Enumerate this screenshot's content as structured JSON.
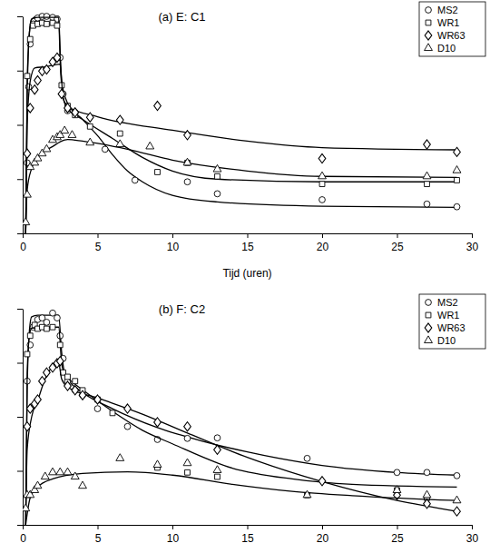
{
  "chart_data": [
    {
      "type": "scatter",
      "title": "(a) E: C1",
      "x_label": "Tijd (uren)",
      "xlim": [
        0,
        30
      ],
      "xticks": [
        0,
        5,
        10,
        15,
        20,
        25,
        30
      ],
      "ylim": [
        -4,
        0
      ],
      "yticks": [
        -4,
        -3,
        -2,
        -1,
        0
      ],
      "tick_labels": "x",
      "grid": false,
      "legend": "top-right",
      "series": [
        {
          "name": "MS2",
          "color": "#000000",
          "marker": "circle",
          "x": [
            0.3,
            0.4,
            0.5,
            0.7,
            1,
            1.3,
            1.6,
            2,
            2.3,
            2.5,
            2.7,
            3,
            3.5,
            5.5,
            7.5,
            11,
            13,
            20,
            27,
            29
          ],
          "values": [
            -2.7,
            -1.3,
            -0.51,
            -0.14,
            -0.03,
            0,
            0,
            -0.02,
            -0.05,
            -0.76,
            -1.43,
            -1.74,
            -1.77,
            -2.45,
            -3.02,
            -3.05,
            -3.27,
            -3.38,
            -3.46,
            -3.51
          ],
          "fit_x": [
            0.2,
            0.3,
            0.45,
            0.6,
            1,
            2.4,
            2.5,
            2.6,
            3,
            4,
            5,
            6,
            7,
            8,
            10,
            13,
            20,
            29
          ],
          "fit_values": [
            -4,
            -1.5,
            -0.3,
            -0.05,
            0,
            0,
            -0.6,
            -1.2,
            -1.6,
            -1.9,
            -2.2,
            -2.55,
            -2.85,
            -3.05,
            -3.3,
            -3.42,
            -3.5,
            -3.52
          ]
        },
        {
          "name": "WR1",
          "color": "#000000",
          "marker": "square",
          "x": [
            0.3,
            0.5,
            0.7,
            1,
            1.3,
            1.6,
            2,
            2.3,
            2.6,
            3,
            3.5,
            4.5,
            6.5,
            9,
            11,
            13,
            20,
            27,
            29
          ],
          "values": [
            -1.1,
            -0.42,
            -0.17,
            -0.14,
            -0.12,
            -0.14,
            -0.12,
            -0.17,
            -1.27,
            -1.65,
            -1.82,
            -2.03,
            -2.16,
            -2.87,
            -2.7,
            -2.95,
            -3.09,
            -3.09,
            -3.02
          ],
          "fit_x": [
            0.2,
            0.3,
            0.45,
            0.6,
            1,
            2.4,
            2.5,
            2.7,
            3,
            4,
            6,
            8,
            10,
            13,
            20,
            29
          ],
          "fit_values": [
            -4,
            -1.2,
            -0.3,
            -0.05,
            -0.02,
            -0.02,
            -0.8,
            -1.5,
            -1.7,
            -1.9,
            -2.25,
            -2.6,
            -2.85,
            -3.0,
            -3.05,
            -3.05
          ]
        },
        {
          "name": "WR63",
          "color": "#000000",
          "marker": "diamond",
          "x": [
            0.3,
            0.5,
            0.8,
            1,
            1.3,
            1.6,
            2,
            2.3,
            2.6,
            3,
            3.5,
            4.5,
            6.5,
            9,
            11,
            20,
            27,
            29
          ],
          "values": [
            -2.53,
            -1.69,
            -1.35,
            -1.18,
            -1.01,
            -0.98,
            -0.84,
            -0.76,
            -1.43,
            -1.69,
            -1.77,
            -1.86,
            -1.91,
            -1.65,
            -2.19,
            -2.62,
            -2.36,
            -2.5
          ],
          "fit_x": [
            0.2,
            0.3,
            0.5,
            0.8,
            1.5,
            2.5,
            2.7,
            3,
            5,
            10,
            15,
            20,
            29
          ],
          "fit_values": [
            -4,
            -2.0,
            -1.2,
            -0.95,
            -0.93,
            -0.88,
            -1.5,
            -1.66,
            -1.85,
            -2.1,
            -2.3,
            -2.42,
            -2.46
          ]
        },
        {
          "name": "D10",
          "color": "#000000",
          "marker": "triangle",
          "x": [
            0.2,
            0.3,
            0.5,
            0.8,
            1,
            1.3,
            1.6,
            2,
            2.3,
            2.5,
            2.8,
            3.3,
            4.5,
            6.5,
            8.5,
            11,
            13,
            20,
            27,
            29
          ],
          "values": [
            -3.8,
            -3.29,
            -2.78,
            -2.7,
            -2.62,
            -2.53,
            -2.45,
            -2.28,
            -2.23,
            -2.19,
            -2.11,
            -2.19,
            -2.33,
            -2.36,
            -2.4,
            -2.7,
            -2.82,
            -2.95,
            -2.95,
            -2.84
          ],
          "fit_x": [
            0.2,
            0.3,
            0.6,
            1,
            2,
            2.8,
            3,
            4,
            7,
            10,
            15,
            20,
            29
          ],
          "fit_values": [
            -4,
            -3.2,
            -2.8,
            -2.6,
            -2.4,
            -2.28,
            -2.27,
            -2.3,
            -2.45,
            -2.65,
            -2.85,
            -2.95,
            -2.97
          ]
        }
      ]
    },
    {
      "type": "scatter",
      "title": "(b) F: C2",
      "xlim": [
        0,
        30
      ],
      "xticks": [
        0,
        5,
        10,
        15,
        20,
        25,
        30
      ],
      "ylim": [
        -4,
        0
      ],
      "yticks": [
        -4,
        -3,
        -2,
        -1,
        0
      ],
      "tick_labels": "x",
      "grid": false,
      "legend": "top-right",
      "series": [
        {
          "name": "MS2",
          "color": "#000000",
          "marker": "circle",
          "x": [
            0.3,
            0.5,
            0.7,
            1,
            1.3,
            1.6,
            2,
            2.3,
            2.5,
            2.7,
            3,
            3.5,
            4,
            5,
            7,
            9,
            11,
            13,
            19,
            25,
            27,
            29
          ],
          "values": [
            -1.34,
            -0.67,
            -0.34,
            -0.2,
            -0.17,
            -0.25,
            -0.08,
            -0.17,
            -0.5,
            -0.92,
            -1.34,
            -1.51,
            -1.6,
            -1.85,
            -2.18,
            -2.42,
            -2.4,
            -2.39,
            -2.77,
            -3.03,
            -3.03,
            -3.09
          ],
          "fit_x": [
            0.2,
            0.3,
            0.45,
            0.6,
            1,
            2.4,
            2.6,
            2.8,
            3,
            4,
            6,
            9,
            12,
            15,
            20,
            25,
            29
          ],
          "fit_values": [
            -4,
            -1.5,
            -0.4,
            -0.15,
            -0.12,
            -0.12,
            -0.8,
            -1.2,
            -1.3,
            -1.55,
            -1.85,
            -2.2,
            -2.45,
            -2.65,
            -2.9,
            -3.03,
            -3.08
          ]
        },
        {
          "name": "WR1",
          "color": "#000000",
          "marker": "square",
          "x": [
            0.3,
            0.5,
            0.8,
            1,
            1.3,
            1.6,
            2,
            2.5,
            2.7,
            3,
            3.5,
            4,
            5,
            6,
            9,
            11,
            13,
            19,
            25,
            27
          ],
          "values": [
            -0.84,
            -0.5,
            -0.3,
            -0.37,
            -0.34,
            -0.37,
            -0.34,
            -0.67,
            -1.18,
            -1.26,
            -1.34,
            -1.51,
            -1.68,
            -1.93,
            -2.94,
            -3.03,
            -3.11,
            -3.45,
            -3.36,
            -3.5
          ],
          "fit_x": [
            0.2,
            0.3,
            0.45,
            0.6,
            2.4,
            2.6,
            2.8,
            3,
            4,
            6,
            8,
            10,
            14,
            18,
            22,
            29
          ],
          "fit_values": [
            -4,
            -1.2,
            -0.5,
            -0.36,
            -0.34,
            -1.0,
            -1.22,
            -1.28,
            -1.5,
            -1.9,
            -2.25,
            -2.5,
            -2.95,
            -3.15,
            -3.25,
            -3.3
          ]
        },
        {
          "name": "WR63",
          "color": "#000000",
          "marker": "diamond",
          "x": [
            0.3,
            0.5,
            0.8,
            1,
            1.3,
            1.6,
            2,
            2.3,
            2.5,
            3,
            3.5,
            4,
            5,
            7,
            9,
            11,
            13,
            20,
            25,
            27,
            29
          ],
          "values": [
            -2.18,
            -1.85,
            -1.76,
            -1.68,
            -1.34,
            -1.18,
            -1.09,
            -1.01,
            -0.97,
            -1.43,
            -1.51,
            -1.6,
            -1.68,
            -1.85,
            -2.1,
            -2.18,
            -2.61,
            -3.19,
            -3.45,
            -3.61,
            -3.75
          ],
          "fit_x": [
            0.2,
            0.3,
            0.6,
            1,
            1.5,
            2.4,
            2.6,
            3,
            5,
            8,
            11,
            15,
            20,
            25,
            29
          ],
          "fit_values": [
            -4,
            -2.6,
            -2.0,
            -1.7,
            -1.3,
            -1.0,
            -1.3,
            -1.45,
            -1.65,
            -1.95,
            -2.3,
            -2.75,
            -3.2,
            -3.55,
            -3.75
          ]
        },
        {
          "name": "D10",
          "color": "#000000",
          "marker": "triangle",
          "x": [
            0.2,
            0.3,
            0.5,
            0.8,
            1,
            1.5,
            2,
            2.5,
            3,
            3.5,
            4,
            6.5,
            9,
            11,
            13,
            19,
            25,
            27,
            29
          ],
          "values": [
            -3.7,
            -3.45,
            -3.45,
            -3.36,
            -3.28,
            -3.11,
            -3.03,
            -3.03,
            -3.03,
            -3.11,
            -3.28,
            -2.77,
            -2.89,
            -2.86,
            -2.99,
            -3.45,
            -3.36,
            -3.45,
            -3.55
          ],
          "fit_x": [
            0.2,
            0.5,
            1,
            2,
            4,
            7,
            10,
            14,
            18,
            22,
            29
          ],
          "fit_values": [
            -4,
            -3.5,
            -3.3,
            -3.15,
            -3.05,
            -3.02,
            -3.08,
            -3.25,
            -3.38,
            -3.46,
            -3.55
          ]
        }
      ]
    }
  ]
}
